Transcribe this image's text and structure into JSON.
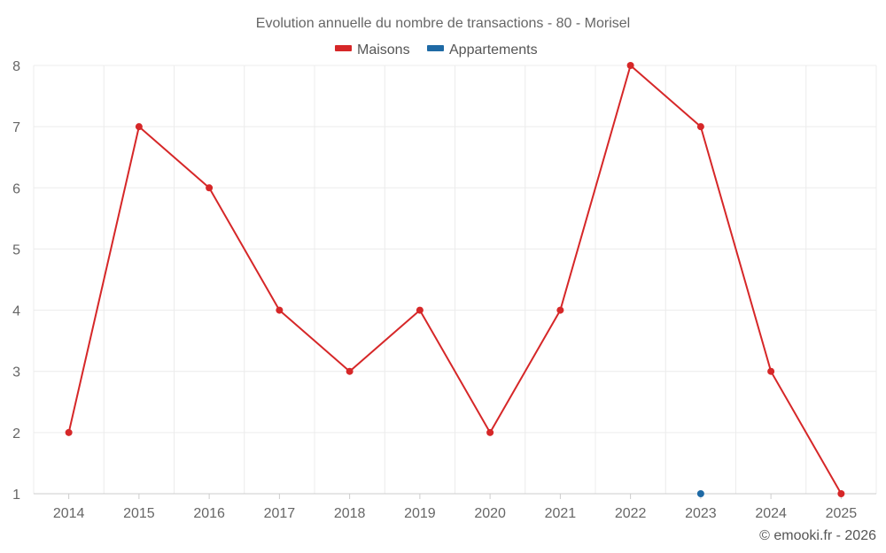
{
  "chart_data": {
    "type": "line",
    "title": "Evolution annuelle du nombre de transactions - 80 - Morisel",
    "categories": [
      "2014",
      "2015",
      "2016",
      "2017",
      "2018",
      "2019",
      "2020",
      "2021",
      "2022",
      "2023",
      "2024",
      "2025"
    ],
    "series": [
      {
        "name": "Maisons",
        "color": "#d62728",
        "values": [
          2,
          7,
          6,
          4,
          3,
          4,
          2,
          4,
          8,
          7,
          3,
          1
        ]
      },
      {
        "name": "Appartements",
        "color": "#1f6aa5",
        "values": [
          null,
          null,
          null,
          null,
          null,
          null,
          null,
          null,
          null,
          1,
          null,
          null
        ]
      }
    ],
    "ylim": [
      1,
      8
    ],
    "yticks": [
      "1",
      "2",
      "3",
      "4",
      "5",
      "6",
      "7",
      "8"
    ],
    "xlabel": "",
    "ylabel": "",
    "grid": true,
    "legend_position": "top-center"
  },
  "credit": "© emooki.fr - 2026"
}
